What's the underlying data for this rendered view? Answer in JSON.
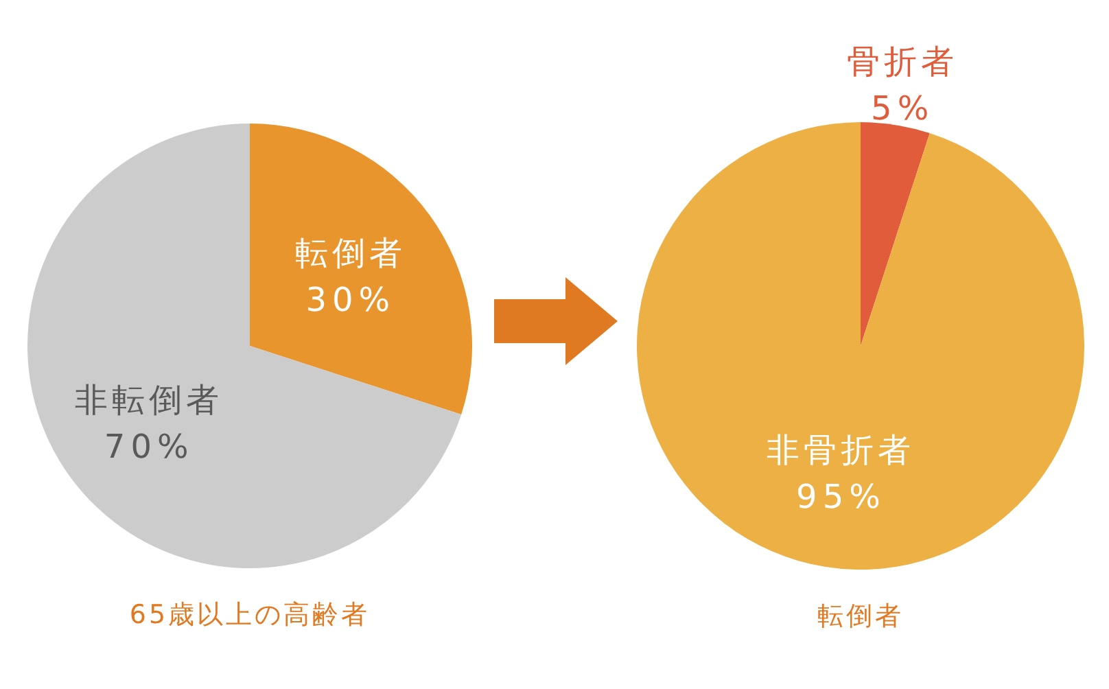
{
  "chart_data": [
    {
      "type": "pie",
      "categories": [
        "転倒者",
        "非転倒者"
      ],
      "values": [
        30,
        70
      ],
      "value_labels": [
        "30%",
        "70%"
      ],
      "colors": [
        "#e8952e",
        "#cccccc"
      ],
      "annotations": [
        "65歳以上の高齢者"
      ]
    },
    {
      "type": "pie",
      "categories": [
        "骨折者",
        "非骨折者"
      ],
      "values": [
        5,
        95
      ],
      "value_labels": [
        "5%",
        "95%"
      ],
      "colors": [
        "#e05c3a",
        "#ecb045"
      ],
      "annotations": [
        "転倒者"
      ]
    }
  ]
}
